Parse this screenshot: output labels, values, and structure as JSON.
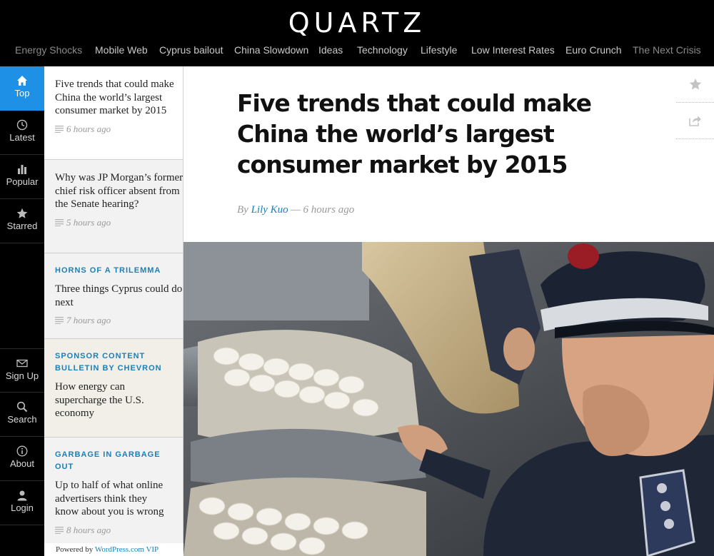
{
  "site": {
    "logo": "QUARTZ"
  },
  "topnav": [
    {
      "label": "Energy Shocks"
    },
    {
      "label": "Mobile Web"
    },
    {
      "label": "Cyprus bailout"
    },
    {
      "label": "China Slowdown"
    },
    {
      "label": "Ideas"
    },
    {
      "label": "Technology"
    },
    {
      "label": "Lifestyle"
    },
    {
      "label": "Low Interest Rates"
    },
    {
      "label": "Euro Crunch"
    },
    {
      "label": "The Next Crisis"
    }
  ],
  "rail": {
    "top": {
      "label": "Top",
      "icon": "home-icon"
    },
    "latest": {
      "label": "Latest",
      "icon": "clock-icon"
    },
    "popular": {
      "label": "Popular",
      "icon": "bar-chart-icon"
    },
    "starred": {
      "label": "Starred",
      "icon": "star-icon"
    },
    "signup": {
      "label": "Sign Up",
      "icon": "envelope-icon"
    },
    "search": {
      "label": "Search",
      "icon": "search-icon"
    },
    "about": {
      "label": "About",
      "icon": "info-icon"
    },
    "login": {
      "label": "Login",
      "icon": "user-icon"
    }
  },
  "stories": [
    {
      "kicker": "",
      "title": "Five trends that could make China the world’s largest consumer market by 2015",
      "time": "6 hours ago"
    },
    {
      "kicker": "",
      "title": "Why was JP Morgan’s former chief risk officer absent from the Senate hearing?",
      "time": "5 hours ago"
    },
    {
      "kicker": "HORNS OF A TRILEMMA",
      "title": "Three things Cyprus could do next",
      "time": "7 hours ago"
    },
    {
      "kicker": "SPONSOR CONTENT BULLETIN BY CHEVRON",
      "title": "How energy can supercharge the U.S. economy",
      "time": ""
    },
    {
      "kicker": "GARBAGE IN GARBAGE OUT",
      "title": "Up to half of what online advertisers think they know about you is wrong",
      "time": "8 hours ago"
    }
  ],
  "footer": {
    "powered_prefix": "Powered by",
    "powered_link": "WordPress.com VIP"
  },
  "article": {
    "headline": "Five trends that could make China the world’s largest consumer market by 2015",
    "by": "By",
    "author": "Lily Kuo",
    "time_sep": "—",
    "time": "6 hours ago"
  },
  "colors": {
    "accent": "#1e90e6",
    "link": "#1a7fb6"
  }
}
